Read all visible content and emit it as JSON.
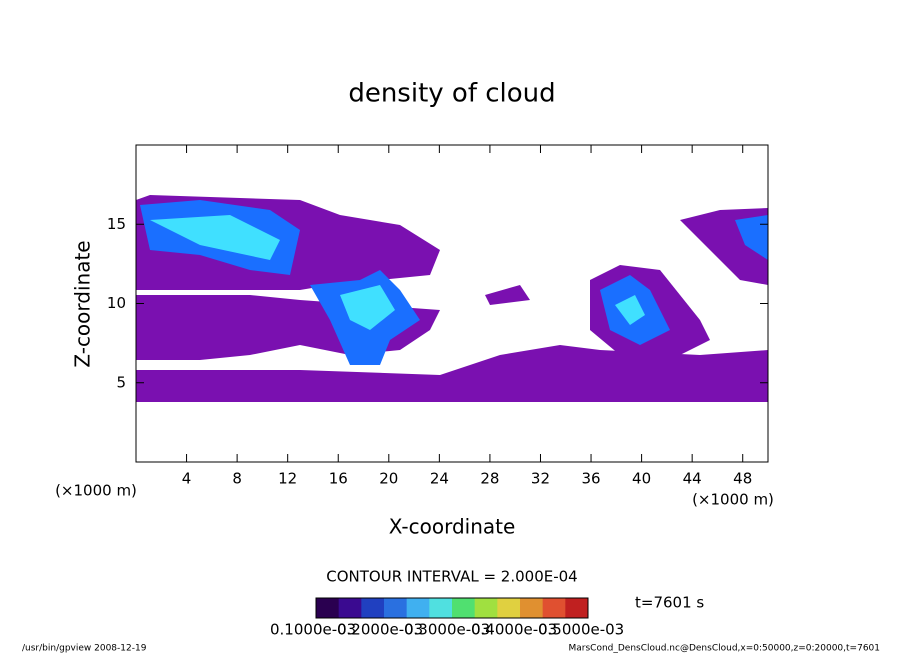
{
  "chart_data": {
    "type": "contour",
    "title": "density of cloud",
    "x_label": "X-coordinate",
    "y_label": "Z-coordinate",
    "x_unit": "(×1000 m)",
    "y_unit": "(×1000 m)",
    "xlim": [
      0,
      50
    ],
    "ylim": [
      0,
      20
    ],
    "xticks": [
      4,
      8,
      12,
      16,
      20,
      24,
      28,
      32,
      36,
      40,
      44,
      48
    ],
    "yticks": [
      5,
      10,
      15
    ],
    "contour_interval": "CONTOUR INTERVAL = 2.000E-04",
    "time_label": "t=7601 s",
    "colorbar_labels": [
      "0.1000e-03",
      "0.2000e-03",
      "0.3000e-03",
      "0.4000e-03",
      "0.5000e-03"
    ],
    "colormap": [
      "#2a0050",
      "#3a0a90",
      "#2040c0",
      "#2a70e0",
      "#40b0f0",
      "#50e0e0",
      "#50e070",
      "#a0e040",
      "#e0d040",
      "#e09030",
      "#e05030",
      "#c02020"
    ],
    "footer_left": "/usr/bin/gpview  2008-12-19",
    "footer_right": "MarsCond_DensCloud.nc@DensCloud,x=0:50000,z=0:20000,t=7601"
  }
}
